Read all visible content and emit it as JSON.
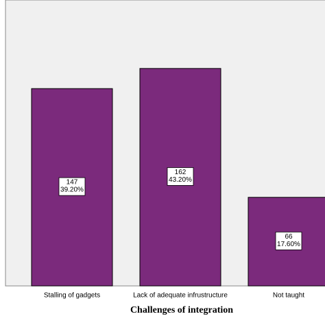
{
  "chart_data": {
    "type": "bar",
    "x_label": "Challenges of integration",
    "categories": [
      "Stalling of gadgets",
      "Lack of adequate infrustructure",
      "Not taught"
    ],
    "values": [
      147,
      162,
      66
    ],
    "percentages": {
      "values": [
        39.2,
        43.2,
        17.6
      ],
      "value_labels": [
        "39.20%",
        "43.20%",
        "17.60%"
      ]
    },
    "color": "#7b2a7c",
    "ylim": [
      0,
      213
    ]
  }
}
